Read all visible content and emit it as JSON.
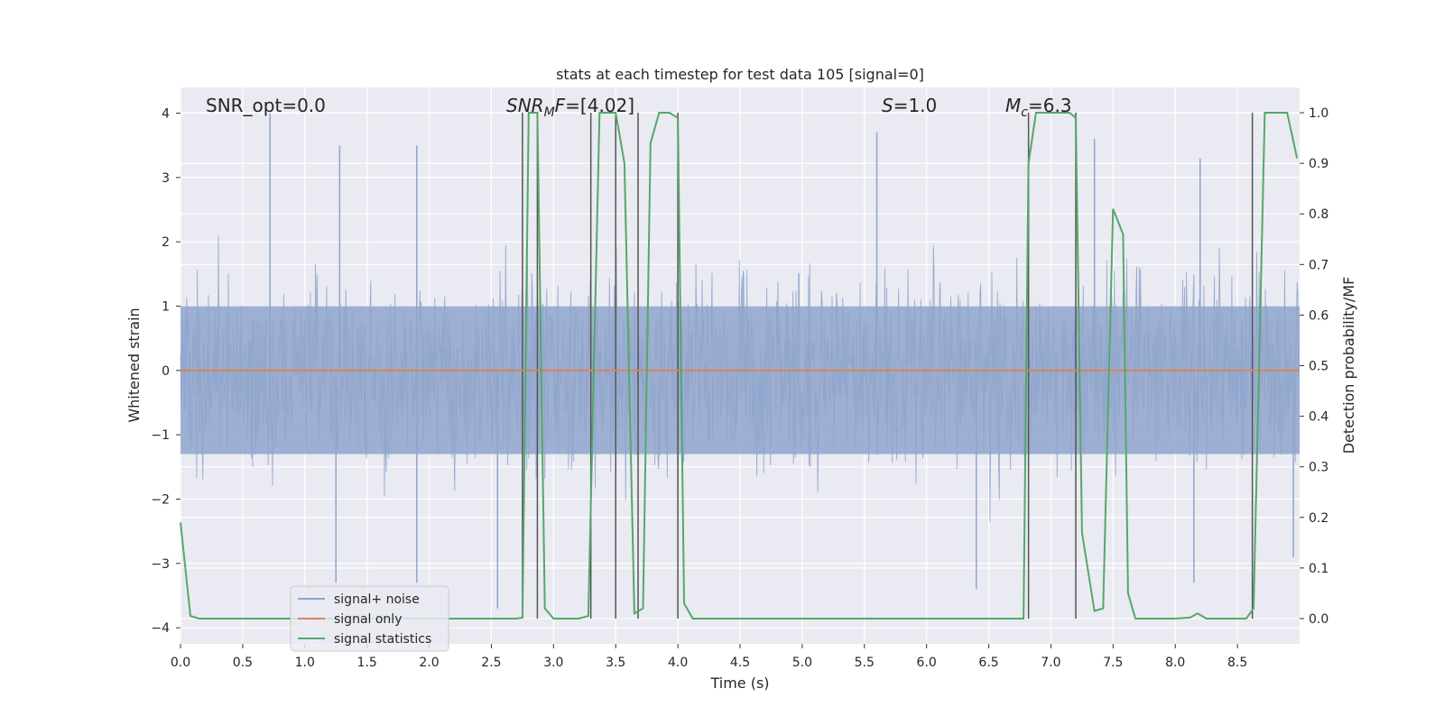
{
  "chart_data": {
    "type": "line",
    "title": "stats at each timestep for test data 105 [signal=0]",
    "xlabel": "Time (s)",
    "ylabel_left": "Whitened strain",
    "ylabel_right": "Detection probability/MF",
    "xlim": [
      0.0,
      9.0
    ],
    "ylim_left": [
      -4.25,
      4.4
    ],
    "ylim_right": [
      -0.05,
      1.05
    ],
    "x_ticks": [
      "0.0",
      "0.5",
      "1.0",
      "1.5",
      "2.0",
      "2.5",
      "3.0",
      "3.5",
      "4.0",
      "4.5",
      "5.0",
      "5.5",
      "6.0",
      "6.5",
      "7.0",
      "7.5",
      "8.0",
      "8.5"
    ],
    "y_ticks_left": [
      "4",
      "3",
      "2",
      "1",
      "0",
      "−1",
      "−2",
      "−3",
      "−4"
    ],
    "y_ticks_right": [
      "1.0",
      "0.9",
      "0.8",
      "0.7",
      "0.6",
      "0.5",
      "0.4",
      "0.3",
      "0.2",
      "0.1",
      "0.0"
    ],
    "grid": true,
    "legend_position": "lower-left",
    "annotations": {
      "snr_opt": "SNR_opt=0.0",
      "snr_mf": "SNR_MF=[4.02]",
      "s": "S=1.0",
      "mc": "M_c=6.3"
    },
    "series": [
      {
        "name": "signal+ noise",
        "color": "#8fa4cc",
        "kind": "noise",
        "upper_envelope_peaks": [
          [
            0.72,
            4.0
          ],
          [
            1.28,
            3.5
          ],
          [
            1.9,
            3.5
          ],
          [
            5.6,
            3.7
          ],
          [
            8.2,
            3.3
          ],
          [
            7.35,
            3.6
          ]
        ],
        "lower_envelope_peaks": [
          [
            1.25,
            -3.3
          ],
          [
            1.9,
            -3.3
          ],
          [
            2.55,
            -3.7
          ],
          [
            6.4,
            -3.4
          ],
          [
            8.15,
            -3.3
          ],
          [
            8.95,
            -2.9
          ]
        ],
        "typical_range": [
          -2.2,
          2.4
        ]
      },
      {
        "name": "signal only",
        "color": "#dd8452",
        "kind": "line",
        "x": [
          0.0,
          9.0
        ],
        "y": [
          0.0,
          0.0
        ]
      },
      {
        "name": "signal statistics",
        "color": "#55a868",
        "kind": "line",
        "axis": "right",
        "x": [
          0.0,
          0.08,
          0.15,
          0.3,
          1.0,
          2.0,
          2.7,
          2.75,
          2.8,
          2.87,
          2.93,
          3.0,
          3.1,
          3.2,
          3.28,
          3.37,
          3.42,
          3.5,
          3.57,
          3.65,
          3.72,
          3.78,
          3.85,
          3.93,
          4.0,
          4.05,
          4.12,
          4.5,
          6.0,
          6.78,
          6.82,
          6.88,
          6.95,
          7.05,
          7.15,
          7.2,
          7.25,
          7.35,
          7.42,
          7.5,
          7.58,
          7.62,
          7.68,
          7.75,
          8.0,
          8.12,
          8.18,
          8.25,
          8.45,
          8.57,
          8.63,
          8.72,
          8.9,
          8.98
        ],
        "y": [
          0.19,
          0.005,
          0.0,
          0.0,
          0.0,
          0.0,
          0.0,
          0.002,
          1.0,
          1.0,
          0.02,
          0.0,
          0.0,
          0.0,
          0.005,
          1.0,
          1.0,
          1.0,
          0.9,
          0.01,
          0.02,
          0.94,
          1.0,
          1.0,
          0.99,
          0.03,
          0.0,
          0.0,
          0.0,
          0.0,
          0.9,
          1.0,
          1.0,
          1.0,
          1.0,
          0.99,
          0.17,
          0.015,
          0.02,
          0.81,
          0.76,
          0.05,
          0.0,
          0.0,
          0.0,
          0.002,
          0.01,
          0.0,
          0.0,
          0.0,
          0.02,
          1.0,
          1.0,
          0.91
        ]
      }
    ],
    "vertical_markers_x": [
      2.75,
      2.87,
      3.3,
      3.5,
      3.68,
      4.0,
      6.82,
      7.2,
      8.62
    ]
  }
}
